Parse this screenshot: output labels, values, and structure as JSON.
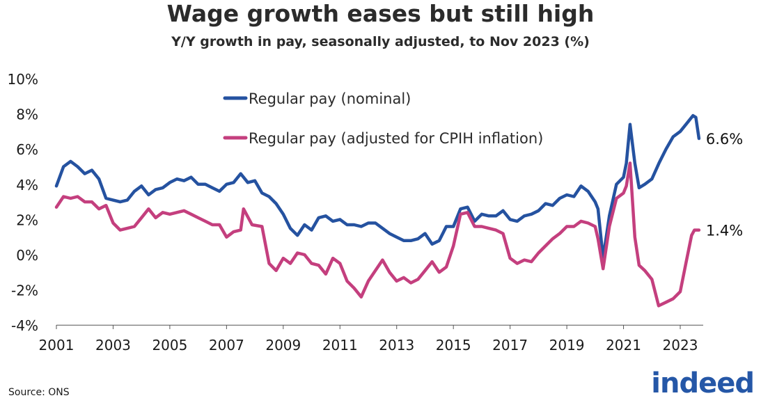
{
  "title": "Wage growth eases but still high",
  "subtitle": "Y/Y growth in pay, seasonally adjusted, to Nov 2023 (%)",
  "source": "Source: ONS",
  "logo_text": "indeed",
  "chart_data": {
    "type": "line",
    "title": "Wage growth eases but still high",
    "subtitle": "Y/Y growth in pay, seasonally adjusted, to Nov 2023 (%)",
    "xlabel": "",
    "ylabel": "",
    "xlim": [
      2001,
      2023.7
    ],
    "ylim": [
      -4,
      10
    ],
    "x_ticks": [
      "2001",
      "2003",
      "2005",
      "2007",
      "2009",
      "2011",
      "2013",
      "2015",
      "2017",
      "2019",
      "2021",
      "2023"
    ],
    "y_ticks": [
      "-4%",
      "-2%",
      "0%",
      "2%",
      "4%",
      "6%",
      "8%",
      "10%"
    ],
    "grid": false,
    "legend_position": "top-center",
    "series": [
      {
        "name": "Regular pay (nominal)",
        "color": "#2552a0",
        "end_label": "6.6%",
        "x": [
          2001.0,
          2001.25,
          2001.5,
          2001.75,
          2002.0,
          2002.25,
          2002.5,
          2002.75,
          2003.0,
          2003.25,
          2003.5,
          2003.75,
          2004.0,
          2004.25,
          2004.5,
          2004.75,
          2005.0,
          2005.25,
          2005.5,
          2005.75,
          2006.0,
          2006.25,
          2006.5,
          2006.75,
          2007.0,
          2007.25,
          2007.5,
          2007.75,
          2008.0,
          2008.25,
          2008.5,
          2008.75,
          2009.0,
          2009.25,
          2009.5,
          2009.75,
          2010.0,
          2010.25,
          2010.5,
          2010.75,
          2011.0,
          2011.25,
          2011.5,
          2011.75,
          2012.0,
          2012.25,
          2012.5,
          2012.75,
          2013.0,
          2013.25,
          2013.5,
          2013.75,
          2014.0,
          2014.25,
          2014.5,
          2014.75,
          2015.0,
          2015.25,
          2015.5,
          2015.75,
          2016.0,
          2016.25,
          2016.5,
          2016.75,
          2017.0,
          2017.25,
          2017.5,
          2017.75,
          2018.0,
          2018.25,
          2018.5,
          2018.75,
          2019.0,
          2019.25,
          2019.5,
          2019.75,
          2020.0,
          2020.1,
          2020.28,
          2020.5,
          2020.75,
          2021.0,
          2021.1,
          2021.23,
          2021.4,
          2021.55,
          2021.75,
          2022.0,
          2022.25,
          2022.5,
          2022.75,
          2023.0,
          2023.25,
          2023.45,
          2023.55,
          2023.66
        ],
        "y": [
          3.9,
          5.0,
          5.3,
          5.0,
          4.6,
          4.8,
          4.3,
          3.2,
          3.1,
          3.0,
          3.1,
          3.6,
          3.9,
          3.4,
          3.7,
          3.8,
          4.1,
          4.3,
          4.2,
          4.4,
          4.0,
          4.0,
          3.8,
          3.6,
          4.0,
          4.1,
          4.6,
          4.1,
          4.2,
          3.5,
          3.3,
          2.9,
          2.3,
          1.5,
          1.1,
          1.7,
          1.4,
          2.1,
          2.2,
          1.9,
          2.0,
          1.7,
          1.7,
          1.6,
          1.8,
          1.8,
          1.5,
          1.2,
          1.0,
          0.8,
          0.8,
          0.9,
          1.2,
          0.6,
          0.8,
          1.6,
          1.6,
          2.6,
          2.7,
          1.9,
          2.3,
          2.2,
          2.2,
          2.5,
          2.0,
          1.9,
          2.2,
          2.3,
          2.5,
          2.9,
          2.8,
          3.2,
          3.4,
          3.3,
          3.9,
          3.6,
          3.0,
          2.6,
          -0.2,
          2.2,
          4.0,
          4.4,
          5.2,
          7.4,
          5.2,
          3.8,
          4.0,
          4.3,
          5.2,
          6.0,
          6.7,
          7.0,
          7.5,
          7.9,
          7.8,
          6.6
        ]
      },
      {
        "name": "Regular pay (adjusted for CPIH inflation)",
        "color": "#c43f7e",
        "end_label": "1.4%",
        "x": [
          2001.0,
          2001.25,
          2001.5,
          2001.75,
          2002.0,
          2002.25,
          2002.5,
          2002.75,
          2003.0,
          2003.25,
          2003.5,
          2003.75,
          2004.0,
          2004.25,
          2004.5,
          2004.75,
          2005.0,
          2005.25,
          2005.5,
          2005.75,
          2006.0,
          2006.25,
          2006.5,
          2006.75,
          2007.0,
          2007.25,
          2007.5,
          2007.6,
          2007.9,
          2008.25,
          2008.5,
          2008.75,
          2009.0,
          2009.25,
          2009.5,
          2009.75,
          2010.0,
          2010.25,
          2010.5,
          2010.75,
          2011.0,
          2011.25,
          2011.5,
          2011.75,
          2012.0,
          2012.25,
          2012.5,
          2012.75,
          2013.0,
          2013.25,
          2013.5,
          2013.75,
          2014.0,
          2014.25,
          2014.5,
          2014.75,
          2015.0,
          2015.25,
          2015.5,
          2015.75,
          2016.0,
          2016.25,
          2016.5,
          2016.75,
          2017.0,
          2017.25,
          2017.5,
          2017.75,
          2018.0,
          2018.25,
          2018.5,
          2018.75,
          2019.0,
          2019.25,
          2019.5,
          2019.75,
          2020.0,
          2020.1,
          2020.28,
          2020.5,
          2020.75,
          2021.0,
          2021.1,
          2021.23,
          2021.4,
          2021.55,
          2021.75,
          2022.0,
          2022.24,
          2022.5,
          2022.75,
          2023.0,
          2023.2,
          2023.4,
          2023.5,
          2023.66
        ],
        "y": [
          2.7,
          3.3,
          3.2,
          3.3,
          3.0,
          3.0,
          2.6,
          2.8,
          1.8,
          1.4,
          1.5,
          1.6,
          2.1,
          2.6,
          2.1,
          2.4,
          2.3,
          2.4,
          2.5,
          2.3,
          2.1,
          1.9,
          1.7,
          1.7,
          1.0,
          1.3,
          1.4,
          2.6,
          1.7,
          1.6,
          -0.5,
          -0.9,
          -0.2,
          -0.5,
          0.1,
          0.0,
          -0.5,
          -0.6,
          -1.1,
          -0.2,
          -0.5,
          -1.5,
          -1.9,
          -2.4,
          -1.5,
          -0.9,
          -0.3,
          -1.0,
          -1.5,
          -1.3,
          -1.6,
          -1.4,
          -0.9,
          -0.4,
          -1.0,
          -0.7,
          0.5,
          2.3,
          2.4,
          1.6,
          1.6,
          1.5,
          1.4,
          1.2,
          -0.2,
          -0.5,
          -0.3,
          -0.4,
          0.1,
          0.5,
          0.9,
          1.2,
          1.6,
          1.6,
          1.9,
          1.8,
          1.6,
          0.9,
          -0.8,
          1.6,
          3.2,
          3.5,
          3.9,
          5.2,
          1.0,
          -0.6,
          -0.9,
          -1.4,
          -2.9,
          -2.7,
          -2.5,
          -2.1,
          -0.5,
          1.1,
          1.4,
          1.4
        ]
      }
    ]
  }
}
